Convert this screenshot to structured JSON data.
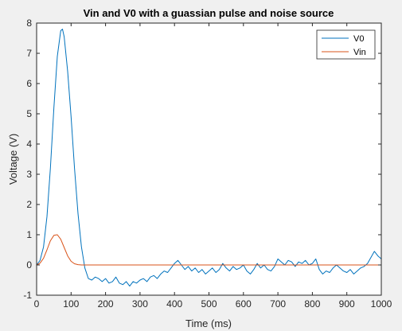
{
  "figure": {
    "background": "#f0f0f0",
    "axes_background": "#ffffff",
    "axis_color": "#262626"
  },
  "chart_data": {
    "type": "line",
    "title": "Vin and V0 with a guassian pulse and noise source",
    "xlabel": "Time (ms)",
    "ylabel": "Voltage (V)",
    "xlim": [
      0,
      1000
    ],
    "ylim": [
      -1,
      8
    ],
    "xticks": [
      0,
      100,
      200,
      300,
      400,
      500,
      600,
      700,
      800,
      900,
      1000
    ],
    "yticks": [
      -1,
      0,
      1,
      2,
      3,
      4,
      5,
      6,
      7,
      8
    ],
    "grid": false,
    "box": true,
    "legend": {
      "placement": "top-right",
      "entries": [
        "V0",
        "Vin"
      ]
    },
    "series": [
      {
        "name": "V0",
        "color": "#0072bd",
        "x": [
          0,
          10,
          20,
          30,
          40,
          50,
          60,
          70,
          75,
          80,
          90,
          100,
          110,
          120,
          130,
          140,
          150,
          160,
          170,
          180,
          190,
          200,
          210,
          220,
          230,
          240,
          250,
          260,
          270,
          280,
          290,
          300,
          310,
          320,
          330,
          340,
          350,
          360,
          370,
          380,
          390,
          400,
          410,
          420,
          430,
          440,
          450,
          460,
          470,
          480,
          490,
          500,
          510,
          520,
          530,
          540,
          550,
          560,
          570,
          580,
          590,
          600,
          610,
          620,
          630,
          640,
          650,
          660,
          670,
          680,
          690,
          700,
          710,
          720,
          730,
          740,
          750,
          760,
          770,
          780,
          790,
          800,
          810,
          820,
          830,
          840,
          850,
          860,
          870,
          880,
          890,
          900,
          910,
          920,
          930,
          940,
          950,
          960,
          970,
          980,
          990,
          1000
        ],
        "y": [
          0.0,
          0.15,
          0.6,
          1.6,
          3.2,
          5.2,
          6.9,
          7.75,
          7.8,
          7.55,
          6.4,
          4.9,
          3.2,
          1.7,
          0.6,
          -0.1,
          -0.45,
          -0.5,
          -0.4,
          -0.45,
          -0.55,
          -0.45,
          -0.6,
          -0.55,
          -0.4,
          -0.6,
          -0.65,
          -0.55,
          -0.7,
          -0.55,
          -0.6,
          -0.5,
          -0.45,
          -0.55,
          -0.4,
          -0.35,
          -0.45,
          -0.3,
          -0.2,
          -0.25,
          -0.1,
          0.05,
          0.15,
          0.0,
          -0.15,
          -0.05,
          -0.2,
          -0.1,
          -0.25,
          -0.15,
          -0.3,
          -0.2,
          -0.1,
          -0.25,
          -0.15,
          0.05,
          -0.1,
          -0.2,
          -0.05,
          -0.15,
          -0.1,
          0.0,
          -0.2,
          -0.3,
          -0.15,
          0.05,
          -0.1,
          0.0,
          -0.15,
          -0.2,
          -0.05,
          0.2,
          0.1,
          0.0,
          0.15,
          0.1,
          -0.05,
          0.1,
          0.05,
          0.15,
          0.0,
          0.05,
          0.2,
          -0.15,
          -0.3,
          -0.2,
          -0.25,
          -0.1,
          0.0,
          -0.1,
          -0.2,
          -0.25,
          -0.15,
          -0.3,
          -0.2,
          -0.1,
          -0.05,
          0.05,
          0.25,
          0.45,
          0.3,
          0.2
        ]
      },
      {
        "name": "Vin",
        "color": "#d95319",
        "x": [
          0,
          10,
          20,
          30,
          40,
          50,
          60,
          70,
          80,
          90,
          100,
          110,
          120,
          130,
          140,
          150,
          200,
          300,
          400,
          500,
          600,
          700,
          800,
          900,
          1000
        ],
        "y": [
          0.0,
          0.06,
          0.22,
          0.5,
          0.8,
          0.98,
          1.0,
          0.85,
          0.58,
          0.3,
          0.12,
          0.04,
          0.01,
          0.0,
          0.0,
          0.0,
          0.0,
          0.0,
          0.0,
          0.0,
          0.0,
          0.0,
          0.0,
          0.0,
          0.0
        ]
      }
    ]
  }
}
